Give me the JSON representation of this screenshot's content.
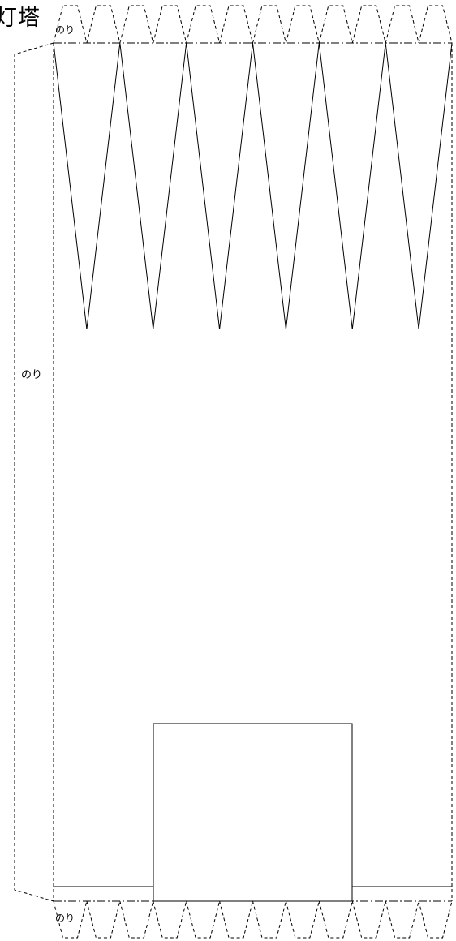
{
  "title": "灯塔",
  "glue": {
    "top": "のり",
    "side": "のり",
    "bottom": "のり"
  },
  "colors": {
    "line": "#000000",
    "background": "#ffffff"
  }
}
